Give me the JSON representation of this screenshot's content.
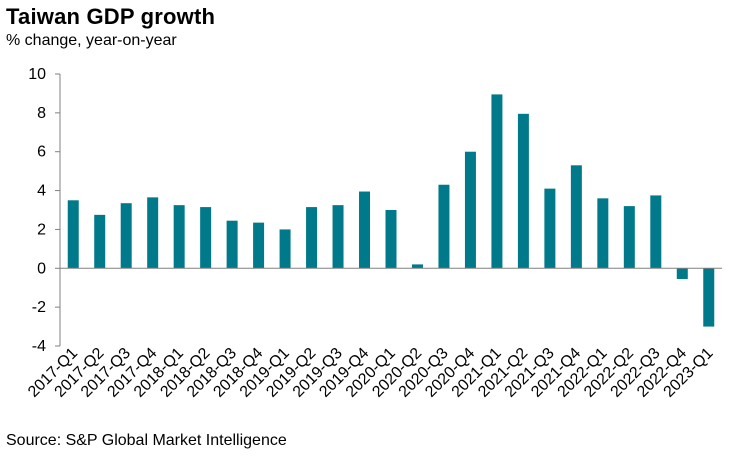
{
  "chart_data": {
    "type": "bar",
    "title": "Taiwan GDP growth",
    "subtitle": "% change, year-on-year",
    "source": "Source: S&P Global Market Intelligence",
    "xlabel": "",
    "ylabel": "",
    "ylim": [
      -4,
      10
    ],
    "yticks": [
      "-4",
      "-2",
      "0",
      "2",
      "4",
      "6",
      "8",
      "10"
    ],
    "grid": false,
    "bar_color": "#007A8A",
    "categories": [
      "2017-Q1",
      "2017-Q2",
      "2017-Q3",
      "2017-Q4",
      "2018-Q1",
      "2018-Q2",
      "2018-Q3",
      "2018-Q4",
      "2019-Q1",
      "2019-Q2",
      "2019-Q3",
      "2019-Q4",
      "2020-Q1",
      "2020-Q2",
      "2020-Q3",
      "2020-Q4",
      "2021-Q1",
      "2021-Q2",
      "2021-Q3",
      "2021-Q4",
      "2022-Q1",
      "2022-Q2",
      "2022-Q3",
      "2022-Q4",
      "2023-Q1"
    ],
    "values": [
      3.5,
      2.75,
      3.35,
      3.65,
      3.25,
      3.15,
      2.45,
      2.35,
      2.0,
      3.15,
      3.25,
      3.95,
      3.0,
      0.2,
      4.3,
      6.0,
      8.95,
      7.95,
      4.1,
      5.3,
      3.6,
      3.2,
      3.75,
      -0.55,
      -3.0
    ]
  }
}
